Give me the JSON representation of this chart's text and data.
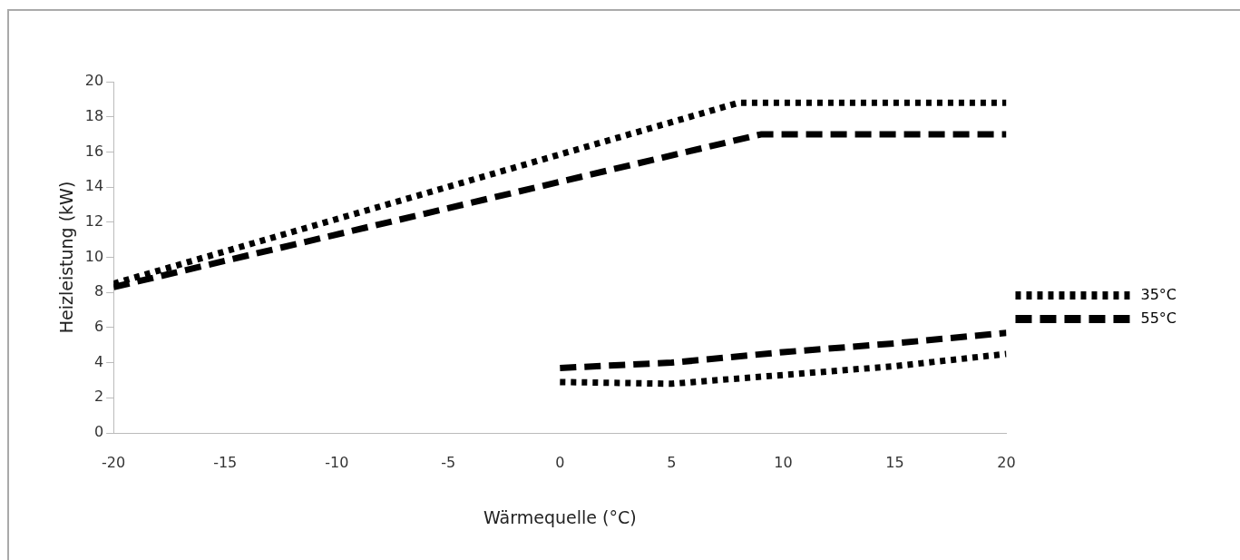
{
  "chart_data": {
    "type": "line",
    "xlabel": "Wärmequelle (°C)",
    "ylabel": "Heizleistung (kW)",
    "xlim": [
      -20,
      20
    ],
    "xticks": [
      -20,
      -15,
      -10,
      -5,
      0,
      5,
      10,
      15,
      20
    ],
    "ylim": [
      0,
      20
    ],
    "yticks": [
      0,
      2,
      4,
      6,
      8,
      10,
      12,
      14,
      16,
      18,
      20
    ],
    "grid": false,
    "legend": "right",
    "marker": "none",
    "series": [
      {
        "name": "35°C",
        "color": "#000000",
        "line_style": "dotted",
        "x": [
          -20,
          8,
          20
        ],
        "values": [
          8.5,
          18.8,
          18.8
        ]
      },
      {
        "name": "55°C",
        "color": "#000000",
        "line_style": "dashed",
        "x": [
          -20,
          9,
          20
        ],
        "values": [
          8.3,
          17,
          17
        ]
      },
      {
        "color": "#000000",
        "line_style": "dotted",
        "x": [
          0,
          5,
          10,
          15,
          20
        ],
        "values": [
          2.9,
          2.8,
          3.3,
          3.8,
          4.5
        ]
      },
      {
        "color": "#000000",
        "line_style": "dashed",
        "x": [
          0,
          5,
          10,
          15,
          20
        ],
        "values": [
          3.7,
          4.0,
          4.6,
          5.1,
          5.7
        ]
      }
    ]
  }
}
